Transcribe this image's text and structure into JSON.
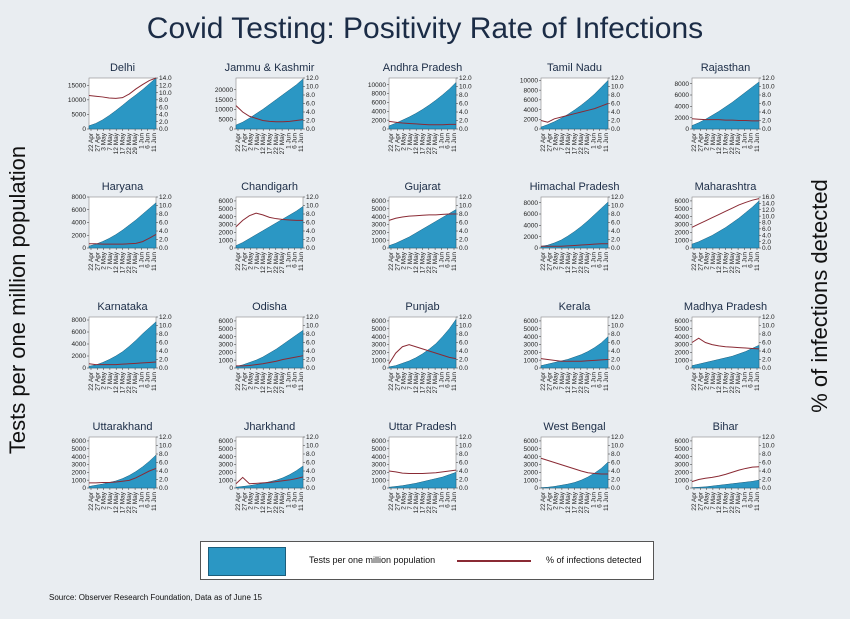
{
  "title": "Covid Testing: Positivity Rate of Infections",
  "left_axis_label": "Tests per one million population",
  "right_axis_label": "% of infections detected",
  "legend": {
    "area_label": "Tests per one million population",
    "line_label": "% of infections detected"
  },
  "source": "Source: Observer Research Foundation, Data as of June 15",
  "colors": {
    "area": "#2b97c4",
    "area_edge": "#1c5e7c",
    "line": "#8a2a34",
    "background": "#e9edf1",
    "plot": "#ffffff"
  },
  "chart_data": {
    "type": "area",
    "x_labels": [
      "22 Apr",
      "27 Apr",
      "2 May",
      "7 May",
      "12 May",
      "17 May",
      "22 May",
      "27 May",
      "1 Jun",
      "6 Jun",
      "11 Jun"
    ],
    "x_labels_delhi": [
      "22 Apr",
      "27 Apr",
      "3 May",
      "7 May",
      "12 May",
      "17 May",
      "22 May",
      "29 May",
      "1 Jun",
      "6 Jun",
      "11 Jun"
    ],
    "right_ticks_default": [
      "0.0",
      "2.0",
      "4.0",
      "6.0",
      "8.0",
      "10.0",
      "12.0"
    ],
    "panels": [
      {
        "name": "Delhi",
        "left_ticks": [
          "0",
          "5000",
          "10000",
          "15000"
        ],
        "left_max": 17500,
        "right_ticks": [
          "0.0",
          "2.0",
          "4.0",
          "6.0",
          "8.0",
          "10.0",
          "12.0",
          "14.0"
        ],
        "right_max": 14,
        "tests": [
          1100,
          1900,
          3100,
          4600,
          6300,
          8100,
          10000,
          11700,
          13500,
          15500,
          17500
        ],
        "positivity": [
          9.2,
          9.0,
          8.8,
          8.5,
          8.4,
          8.6,
          9.6,
          11,
          12.2,
          13.3,
          14
        ]
      },
      {
        "name": "Jammu & Kashmir",
        "left_ticks": [
          "0",
          "5000",
          "10000",
          "15000",
          "20000"
        ],
        "left_max": 26000,
        "right_ticks": [
          "0.0",
          "2.0",
          "4.0",
          "6.0",
          "8.0",
          "10.0",
          "12.0"
        ],
        "right_max": 12,
        "tests": [
          2000,
          3500,
          5500,
          7800,
          10000,
          12500,
          15000,
          17500,
          20000,
          22500,
          25500
        ],
        "positivity": [
          5.5,
          4.0,
          3.0,
          2.5,
          2.0,
          1.8,
          1.7,
          1.7,
          1.8,
          2.0,
          2.2
        ]
      },
      {
        "name": "Andhra Pradesh",
        "left_ticks": [
          "0",
          "2000",
          "4000",
          "6000",
          "8000",
          "10000"
        ],
        "left_max": 11500,
        "right_ticks": [
          "0.0",
          "2.0",
          "4.0",
          "6.0",
          "8.0",
          "10.0",
          "12.0"
        ],
        "right_max": 12,
        "tests": [
          700,
          1300,
          2000,
          2700,
          3500,
          4400,
          5400,
          6500,
          7700,
          9000,
          10500
        ],
        "positivity": [
          1.8,
          1.6,
          1.4,
          1.3,
          1.2,
          1.1,
          1.0,
          1.0,
          1.0,
          1.1,
          1.1
        ]
      },
      {
        "name": "Tamil Nadu",
        "left_ticks": [
          "0",
          "2000",
          "4000",
          "6000",
          "8000",
          "10000"
        ],
        "left_max": 10500,
        "right_ticks": [
          "0.0",
          "2.0",
          "4.0",
          "6.0",
          "8.0",
          "10.0",
          "12.0"
        ],
        "right_max": 12,
        "tests": [
          400,
          900,
          1500,
          2200,
          3000,
          3900,
          4900,
          6000,
          7200,
          8600,
          10000
        ],
        "positivity": [
          2.0,
          1.6,
          2.4,
          2.8,
          3.2,
          3.6,
          4.0,
          4.4,
          4.8,
          5.4,
          6.0
        ]
      },
      {
        "name": "Rajasthan",
        "left_ticks": [
          "0",
          "2000",
          "4000",
          "6000",
          "8000"
        ],
        "left_max": 9000,
        "right_ticks": [
          "0.0",
          "2.0",
          "4.0",
          "6.0",
          "8.0",
          "10.0",
          "12.0"
        ],
        "right_max": 12,
        "tests": [
          600,
          1100,
          1700,
          2400,
          3100,
          3900,
          4700,
          5600,
          6500,
          7400,
          8300
        ],
        "positivity": [
          2.4,
          2.3,
          2.2,
          2.2,
          2.2,
          2.1,
          2.1,
          2.0,
          2.0,
          1.9,
          1.9
        ]
      },
      {
        "name": "Haryana",
        "left_ticks": [
          "0",
          "2000",
          "4000",
          "6000",
          "8000"
        ],
        "left_max": 8000,
        "right_ticks": [
          "0.0",
          "2.0",
          "4.0",
          "6.0",
          "8.0",
          "10.0",
          "12.0"
        ],
        "right_max": 12,
        "tests": [
          300,
          600,
          1000,
          1500,
          2100,
          2800,
          3600,
          4400,
          5300,
          6200,
          7100
        ],
        "positivity": [
          1.0,
          1.0,
          0.9,
          0.9,
          0.9,
          0.9,
          1.0,
          1.1,
          1.5,
          2.3,
          3.2
        ]
      },
      {
        "name": "Chandigarh",
        "left_ticks": [
          "0",
          "1000",
          "2000",
          "3000",
          "4000",
          "5000",
          "6000"
        ],
        "left_max": 6500,
        "right_ticks": [
          "0.0",
          "2.0",
          "4.0",
          "6.0",
          "8.0",
          "10.0",
          "12.0"
        ],
        "right_max": 12,
        "tests": [
          300,
          700,
          1200,
          1700,
          2200,
          2700,
          3200,
          3700,
          4200,
          4700,
          5300
        ],
        "positivity": [
          5.0,
          6.5,
          7.6,
          8.2,
          7.8,
          7.2,
          6.9,
          6.7,
          6.6,
          6.5,
          6.5
        ]
      },
      {
        "name": "Gujarat",
        "left_ticks": [
          "0",
          "1000",
          "2000",
          "3000",
          "4000",
          "5000",
          "6000"
        ],
        "left_max": 6500,
        "right_ticks": [
          "0.0",
          "2.0",
          "4.0",
          "6.0",
          "8.0",
          "10.0",
          "12.0"
        ],
        "right_max": 12,
        "tests": [
          300,
          600,
          1000,
          1400,
          1900,
          2400,
          2900,
          3400,
          3900,
          4400,
          4900
        ],
        "positivity": [
          6.5,
          7.0,
          7.3,
          7.5,
          7.6,
          7.7,
          7.8,
          7.8,
          7.9,
          8.0,
          8.0
        ]
      },
      {
        "name": "Himachal Pradesh",
        "left_ticks": [
          "0",
          "2000",
          "4000",
          "6000",
          "8000"
        ],
        "left_max": 9000,
        "right_ticks": [
          "0.0",
          "2.0",
          "4.0",
          "6.0",
          "8.0",
          "10.0",
          "12.0"
        ],
        "right_max": 12,
        "tests": [
          300,
          500,
          900,
          1400,
          2100,
          2900,
          3800,
          4800,
          5900,
          7000,
          8100
        ],
        "positivity": [
          0.4,
          0.4,
          0.4,
          0.4,
          0.5,
          0.6,
          0.7,
          0.8,
          0.9,
          1.0,
          1.0
        ]
      },
      {
        "name": "Maharashtra",
        "left_ticks": [
          "0",
          "1000",
          "2000",
          "3000",
          "4000",
          "5000",
          "6000"
        ],
        "left_max": 6500,
        "right_ticks": [
          "0.0",
          "2.0",
          "4.0",
          "6.0",
          "8.0",
          "10.0",
          "12.0",
          "14.0",
          "16.0"
        ],
        "right_max": 16,
        "tests": [
          500,
          800,
          1200,
          1600,
          2100,
          2600,
          3200,
          3800,
          4500,
          5200,
          6000
        ],
        "positivity": [
          6.5,
          7.5,
          8.5,
          9.5,
          10.5,
          11.5,
          12.5,
          13.5,
          14.3,
          15.0,
          15.5
        ]
      },
      {
        "name": "Karnataka",
        "left_ticks": [
          "0",
          "2000",
          "4000",
          "6000",
          "8000"
        ],
        "left_max": 8500,
        "right_ticks": [
          "0.0",
          "2.0",
          "4.0",
          "6.0",
          "8.0",
          "10.0",
          "12.0"
        ],
        "right_max": 12,
        "tests": [
          300,
          500,
          900,
          1400,
          2000,
          2700,
          3600,
          4600,
          5700,
          6700,
          7700
        ],
        "positivity": [
          1.0,
          0.8,
          0.8,
          0.8,
          0.8,
          0.9,
          1.0,
          1.1,
          1.2,
          1.3,
          1.4
        ]
      },
      {
        "name": "Odisha",
        "left_ticks": [
          "0",
          "1000",
          "2000",
          "3000",
          "4000",
          "5000",
          "6000"
        ],
        "left_max": 6500,
        "right_ticks": [
          "0.0",
          "2.0",
          "4.0",
          "6.0",
          "8.0",
          "10.0",
          "12.0"
        ],
        "right_max": 12,
        "tests": [
          200,
          400,
          700,
          1000,
          1400,
          1900,
          2400,
          3000,
          3600,
          4200,
          4800
        ],
        "positivity": [
          0.5,
          0.5,
          0.6,
          0.8,
          1.0,
          1.3,
          1.6,
          2.0,
          2.3,
          2.6,
          2.9
        ]
      },
      {
        "name": "Punjab",
        "left_ticks": [
          "0",
          "1000",
          "2000",
          "3000",
          "4000",
          "5000",
          "6000"
        ],
        "left_max": 6500,
        "right_ticks": [
          "0.0",
          "2.0",
          "4.0",
          "6.0",
          "8.0",
          "10.0",
          "12.0"
        ],
        "right_max": 12,
        "tests": [
          150,
          300,
          600,
          900,
          1300,
          1800,
          2400,
          3100,
          4000,
          5000,
          6200
        ],
        "positivity": [
          1.0,
          3.5,
          5.0,
          5.5,
          5.0,
          4.5,
          4.0,
          3.5,
          3.0,
          2.5,
          2.2
        ]
      },
      {
        "name": "Kerala",
        "left_ticks": [
          "0",
          "1000",
          "2000",
          "3000",
          "4000",
          "5000",
          "6000"
        ],
        "left_max": 6500,
        "right_ticks": [
          "0.0",
          "2.0",
          "4.0",
          "6.0",
          "8.0",
          "10.0",
          "12.0"
        ],
        "right_max": 12,
        "tests": [
          300,
          500,
          700,
          900,
          1100,
          1400,
          1700,
          2100,
          2600,
          3200,
          4000
        ],
        "positivity": [
          2.2,
          2.0,
          1.8,
          1.6,
          1.6,
          1.6,
          1.6,
          1.7,
          1.8,
          1.9,
          2.0
        ]
      },
      {
        "name": "Madhya Pradesh",
        "left_ticks": [
          "0",
          "1000",
          "2000",
          "3000",
          "4000",
          "5000",
          "6000"
        ],
        "left_max": 6500,
        "right_ticks": [
          "0.0",
          "2.0",
          "4.0",
          "6.0",
          "8.0",
          "10.0",
          "12.0"
        ],
        "right_max": 12,
        "tests": [
          300,
          500,
          700,
          900,
          1100,
          1300,
          1500,
          1800,
          2100,
          2500,
          2900
        ],
        "positivity": [
          6.0,
          7.0,
          6.0,
          5.5,
          5.2,
          5.0,
          4.9,
          4.8,
          4.7,
          4.6,
          4.5
        ]
      },
      {
        "name": "Uttarakhand",
        "left_ticks": [
          "0",
          "1000",
          "2000",
          "3000",
          "4000",
          "5000",
          "6000"
        ],
        "left_max": 6500,
        "right_ticks": [
          "0.0",
          "2.0",
          "4.0",
          "6.0",
          "8.0",
          "10.0",
          "12.0"
        ],
        "right_max": 12,
        "tests": [
          200,
          350,
          500,
          700,
          900,
          1200,
          1600,
          2100,
          2700,
          3400,
          4200
        ],
        "positivity": [
          1.2,
          1.2,
          1.3,
          1.3,
          1.4,
          1.6,
          1.8,
          2.4,
          3.2,
          4.0,
          4.6
        ]
      },
      {
        "name": "Jharkhand",
        "left_ticks": [
          "0",
          "1000",
          "2000",
          "3000",
          "4000",
          "5000",
          "6000"
        ],
        "left_max": 6500,
        "right_ticks": [
          "0.0",
          "2.0",
          "4.0",
          "6.0",
          "8.0",
          "10.0",
          "12.0"
        ],
        "right_max": 12,
        "tests": [
          100,
          200,
          300,
          450,
          600,
          800,
          1000,
          1300,
          1700,
          2200,
          2800
        ],
        "positivity": [
          1.0,
          2.5,
          1.0,
          1.1,
          1.2,
          1.3,
          1.5,
          1.7,
          1.9,
          2.2,
          2.6
        ]
      },
      {
        "name": "Uttar Pradesh",
        "left_ticks": [
          "0",
          "1000",
          "2000",
          "3000",
          "4000",
          "5000",
          "6000"
        ],
        "left_max": 6500,
        "right_ticks": [
          "0.0",
          "2.0",
          "4.0",
          "6.0",
          "8.0",
          "10.0",
          "12.0"
        ],
        "right_max": 12,
        "tests": [
          100,
          200,
          300,
          450,
          600,
          800,
          1000,
          1200,
          1400,
          1700,
          2000
        ],
        "positivity": [
          4.0,
          3.8,
          3.5,
          3.4,
          3.4,
          3.4,
          3.5,
          3.6,
          3.8,
          4.0,
          4.2
        ]
      },
      {
        "name": "West Bengal",
        "left_ticks": [
          "0",
          "1000",
          "2000",
          "3000",
          "4000",
          "5000",
          "6000"
        ],
        "left_max": 6500,
        "right_ticks": [
          "0.0",
          "2.0",
          "4.0",
          "6.0",
          "8.0",
          "10.0",
          "12.0"
        ],
        "right_max": 12,
        "tests": [
          50,
          100,
          200,
          350,
          500,
          700,
          1000,
          1400,
          1900,
          2500,
          3300
        ],
        "positivity": [
          7.0,
          6.5,
          6.0,
          5.5,
          5.0,
          4.5,
          4.0,
          3.6,
          3.4,
          3.3,
          3.3
        ]
      },
      {
        "name": "Bihar",
        "left_ticks": [
          "0",
          "1000",
          "2000",
          "3000",
          "4000",
          "5000",
          "6000"
        ],
        "left_max": 6500,
        "right_ticks": [
          "0.0",
          "2.0",
          "4.0",
          "6.0",
          "8.0",
          "10.0",
          "12.0"
        ],
        "right_max": 12,
        "tests": [
          50,
          100,
          150,
          250,
          350,
          450,
          550,
          650,
          750,
          850,
          1000
        ],
        "positivity": [
          1.5,
          2.0,
          2.3,
          2.5,
          2.8,
          3.2,
          3.7,
          4.2,
          4.6,
          4.9,
          5.0
        ]
      }
    ]
  }
}
